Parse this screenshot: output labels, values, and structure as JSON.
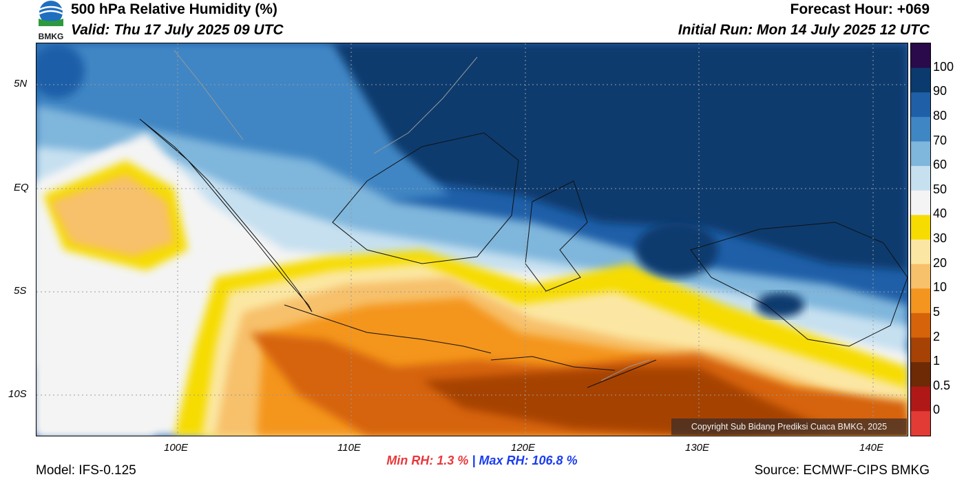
{
  "header": {
    "title": "500 hPa Relative Humidity (%)",
    "valid": "Valid: Thu 17 July 2025 09 UTC",
    "forecast_hour": "Forecast Hour: +069",
    "initial_run": "Initial Run: Mon 14 July 2025 12 UTC",
    "logo_text": "BMKG"
  },
  "map": {
    "lat_ticks": [
      "5N",
      "EQ",
      "5S",
      "10S"
    ],
    "lon_ticks": [
      "100E",
      "110E",
      "120E",
      "130E",
      "140E"
    ],
    "copyright": "Copyright Sub Bidang Prediksi Cuaca BMKG, 2025"
  },
  "colorbar": {
    "labels": [
      "100",
      "90",
      "80",
      "70",
      "60",
      "50",
      "40",
      "30",
      "20",
      "10",
      "5",
      "2",
      "1",
      "0.5",
      "0"
    ],
    "colors": [
      "#2a0a4a",
      "#0b3a6e",
      "#1f5fa8",
      "#3f86c4",
      "#7fb6dc",
      "#c6e0f0",
      "#f4f4f4",
      "#f6dc00",
      "#fbe7a3",
      "#f7c06a",
      "#f4951f",
      "#d6630a",
      "#a64205",
      "#6d2a05",
      "#b01818",
      "#e23b35"
    ]
  },
  "stats": {
    "min_rh": "Min RH:   1.3 %",
    "separator": "|",
    "max_rh": "Max RH: 106.8 %"
  },
  "footer": {
    "model": "Model: IFS-0.125",
    "source": "Source: ECMWF-CIPS BMKG"
  }
}
